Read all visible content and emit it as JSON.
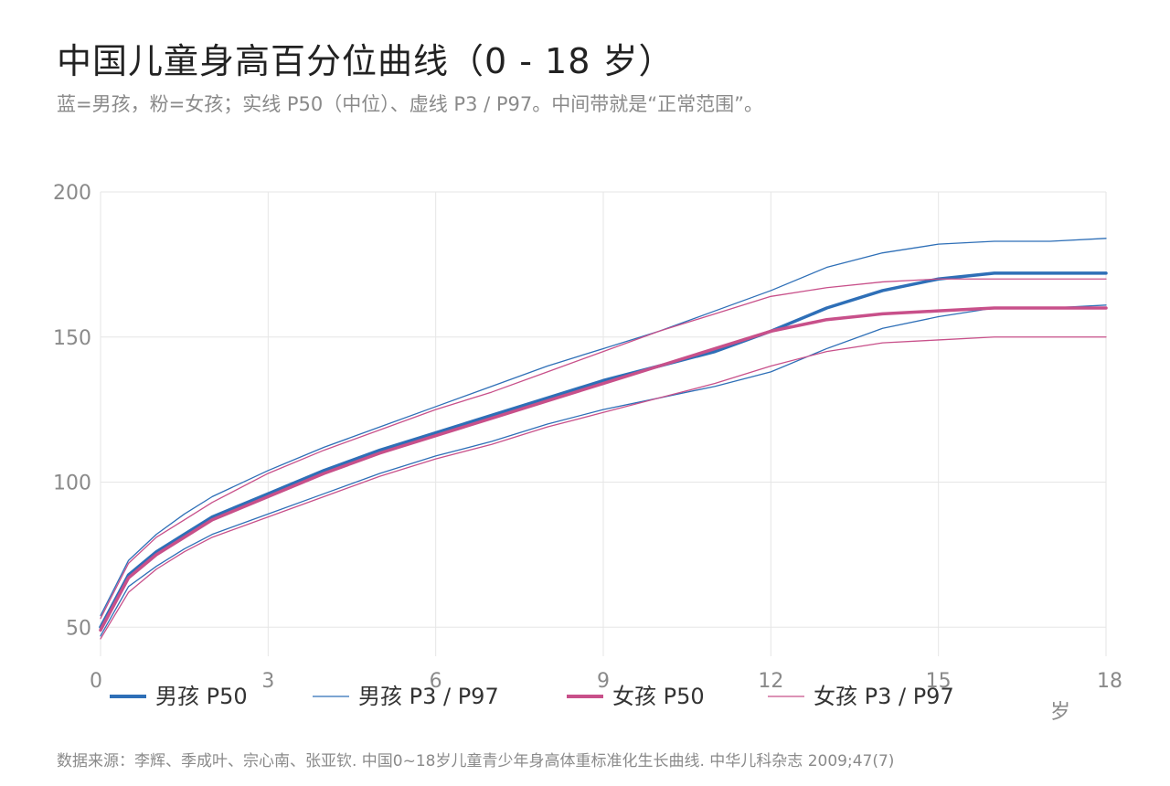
{
  "header": {
    "title": "中国儿童身高百分位曲线（0 - 18 岁）",
    "subtitle": "蓝=男孩，粉=女孩；实线 P50（中位）、虚线 P3 / P97。中间带就是“正常范围”。"
  },
  "footer": {
    "source": "数据来源：李辉、季成叶、宗心南、张亚钦. 中国0~18岁儿童青少年身高体重标准化生长曲线. 中华儿科杂志 2009;47(7)"
  },
  "colors": {
    "boy": "#2e6fb7",
    "girl": "#c8508a",
    "grid": "#e6e6e6"
  },
  "chart_data": {
    "type": "line",
    "title": "中国儿童身高百分位曲线（0 - 18 岁）",
    "xlabel": "岁",
    "ylabel": "",
    "xlim": [
      0,
      18
    ],
    "ylim": [
      40,
      200
    ],
    "xticks": [
      "0",
      "3",
      "6",
      "9",
      "12",
      "15",
      "18"
    ],
    "yticks": [
      "50",
      "100",
      "150",
      "200"
    ],
    "grid": true,
    "legend_position": "bottom",
    "x": [
      0,
      0.5,
      1,
      1.5,
      2,
      3,
      4,
      5,
      6,
      7,
      8,
      9,
      10,
      11,
      12,
      13,
      14,
      15,
      16,
      17,
      18
    ],
    "series": [
      {
        "name": "男孩 P50",
        "group": "boy",
        "role": "median",
        "values": [
          50,
          68,
          76,
          82,
          88,
          96,
          104,
          111,
          117,
          123,
          129,
          135,
          140,
          145,
          152,
          160,
          166,
          170,
          172,
          172,
          172
        ]
      },
      {
        "name": "男孩 P3 / P97",
        "group": "boy",
        "role": "p3",
        "values": [
          47,
          64,
          71,
          77,
          82,
          89,
          96,
          103,
          109,
          114,
          120,
          125,
          129,
          133,
          138,
          146,
          153,
          157,
          160,
          160,
          161
        ]
      },
      {
        "name": "男孩 P3 / P97",
        "group": "boy",
        "role": "p97",
        "values": [
          54,
          73,
          82,
          89,
          95,
          104,
          112,
          119,
          126,
          133,
          140,
          146,
          152,
          159,
          166,
          174,
          179,
          182,
          183,
          183,
          184
        ]
      },
      {
        "name": "女孩 P50",
        "group": "girl",
        "role": "median",
        "values": [
          49,
          67,
          75,
          81,
          87,
          95,
          103,
          110,
          116,
          122,
          128,
          134,
          140,
          146,
          152,
          156,
          158,
          159,
          160,
          160,
          160
        ]
      },
      {
        "name": "女孩 P3 / P97",
        "group": "girl",
        "role": "p3",
        "values": [
          46,
          62,
          70,
          76,
          81,
          88,
          95,
          102,
          108,
          113,
          119,
          124,
          129,
          134,
          140,
          145,
          148,
          149,
          150,
          150,
          150
        ]
      },
      {
        "name": "女孩 P3 / P97",
        "group": "girl",
        "role": "p97",
        "values": [
          53,
          72,
          81,
          87,
          93,
          103,
          111,
          118,
          125,
          131,
          138,
          145,
          152,
          158,
          164,
          167,
          169,
          170,
          170,
          170,
          170
        ]
      }
    ],
    "legend": [
      {
        "label": "男孩 P50",
        "group": "boy",
        "role": "median"
      },
      {
        "label": "男孩 P3 / P97",
        "group": "boy",
        "role": "band"
      },
      {
        "label": "女孩 P50",
        "group": "girl",
        "role": "median"
      },
      {
        "label": "女孩 P3 / P97",
        "group": "girl",
        "role": "band"
      }
    ]
  }
}
